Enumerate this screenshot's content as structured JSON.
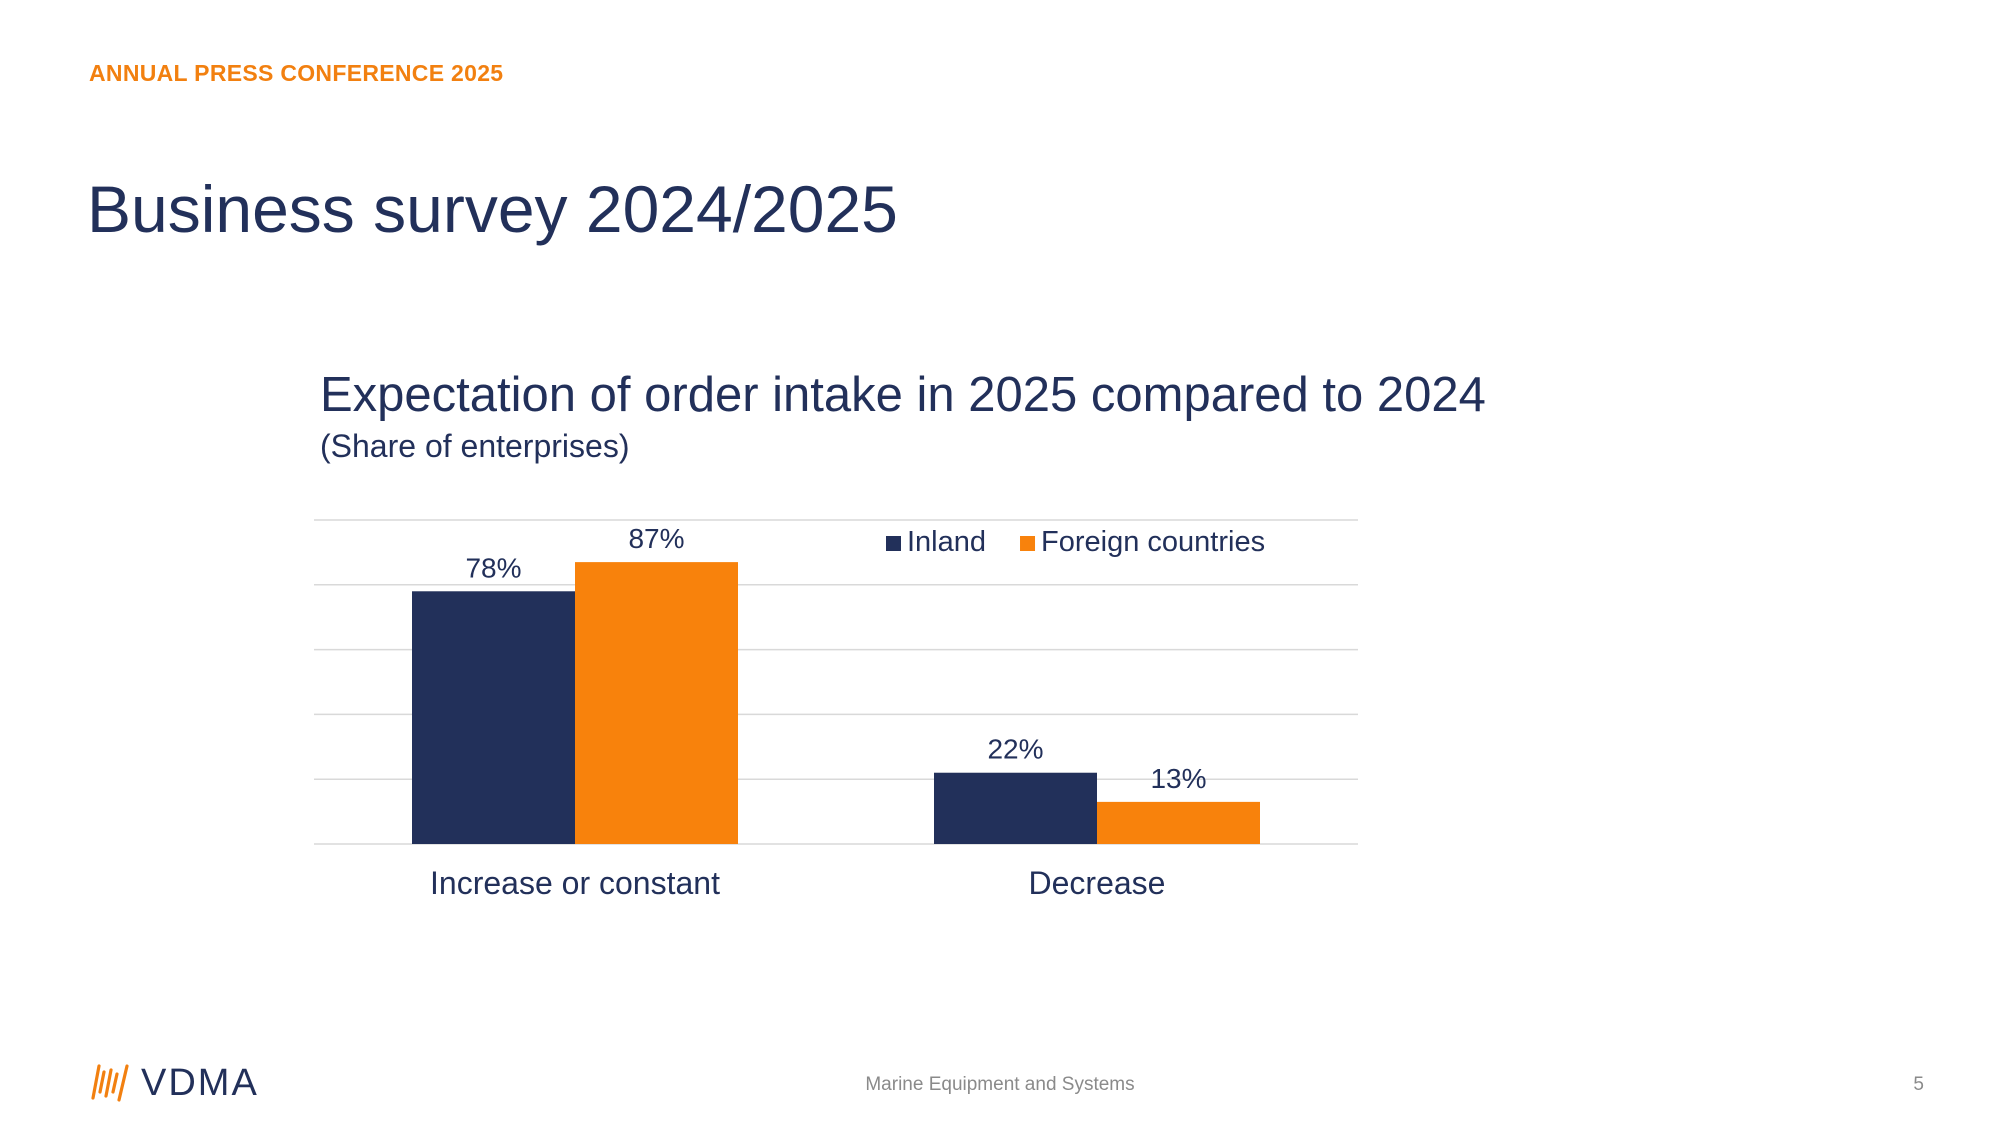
{
  "header": {
    "kicker": "ANNUAL PRESS CONFERENCE 2025",
    "title": "Business survey 2024/2025"
  },
  "chart_data": {
    "type": "bar",
    "title": "Expectation of order intake in 2025 compared to 2024",
    "subtitle": "(Share of enterprises)",
    "categories": [
      "Increase or constant",
      "Decrease"
    ],
    "series": [
      {
        "name": "Inland",
        "values": [
          78,
          22
        ],
        "labels": [
          "78%",
          "22%"
        ],
        "color": "#22305a"
      },
      {
        "name": "Foreign countries",
        "values": [
          87,
          13
        ],
        "labels": [
          "87%",
          "13%"
        ],
        "color": "#f8820c"
      }
    ],
    "ylim": [
      0,
      100
    ],
    "grid": true,
    "legend": "top-right"
  },
  "footer": {
    "center_text": "Marine Equipment and Systems",
    "page_number": "5",
    "logo_text": "VDMA",
    "logo_accent_color": "#f28010"
  },
  "colors": {
    "navy": "#22305a",
    "orange": "#f28010",
    "gridline": "#d9d9d9"
  }
}
